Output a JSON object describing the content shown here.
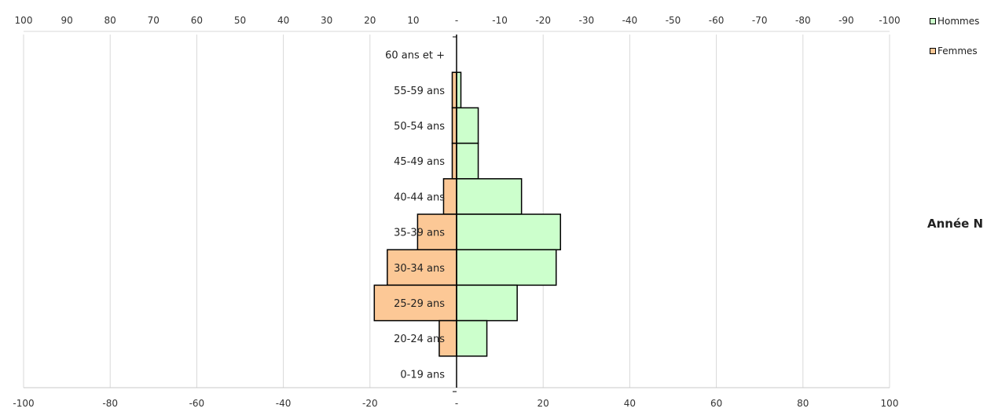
{
  "chart_data": {
    "type": "bar",
    "orientation": "horizontal",
    "stacking": "population-pyramid",
    "categories": [
      "60 ans et +",
      "55-59 ans",
      "50-54 ans",
      "45-49 ans",
      "40-44 ans",
      "35-39 ans",
      "30-34 ans",
      "25-29 ans",
      "20-24 ans",
      "0-19 ans"
    ],
    "series": [
      {
        "name": "Hommes",
        "color": "#ccffcc",
        "values": [
          0,
          1,
          5,
          5,
          15,
          24,
          23,
          14,
          7,
          0
        ]
      },
      {
        "name": "Femmes",
        "color": "#fcc896",
        "values": [
          0,
          1,
          1,
          1,
          3,
          9,
          16,
          19,
          4,
          0
        ]
      }
    ],
    "top_axis_ticks": [
      "100",
      "90",
      "80",
      "70",
      "60",
      "50",
      "40",
      "30",
      "20",
      "10",
      "-",
      "-10",
      "-20",
      "-30",
      "-40",
      "-50",
      "-60",
      "-70",
      "-80",
      "-90",
      "-100"
    ],
    "bottom_axis_ticks": [
      "-100",
      "-80",
      "-60",
      "-40",
      "-20",
      "-",
      "20",
      "40",
      "60",
      "80",
      "100"
    ],
    "xlim": [
      -100,
      100
    ],
    "grid": true,
    "legend_position": "top-right",
    "annotation": "Année N"
  }
}
